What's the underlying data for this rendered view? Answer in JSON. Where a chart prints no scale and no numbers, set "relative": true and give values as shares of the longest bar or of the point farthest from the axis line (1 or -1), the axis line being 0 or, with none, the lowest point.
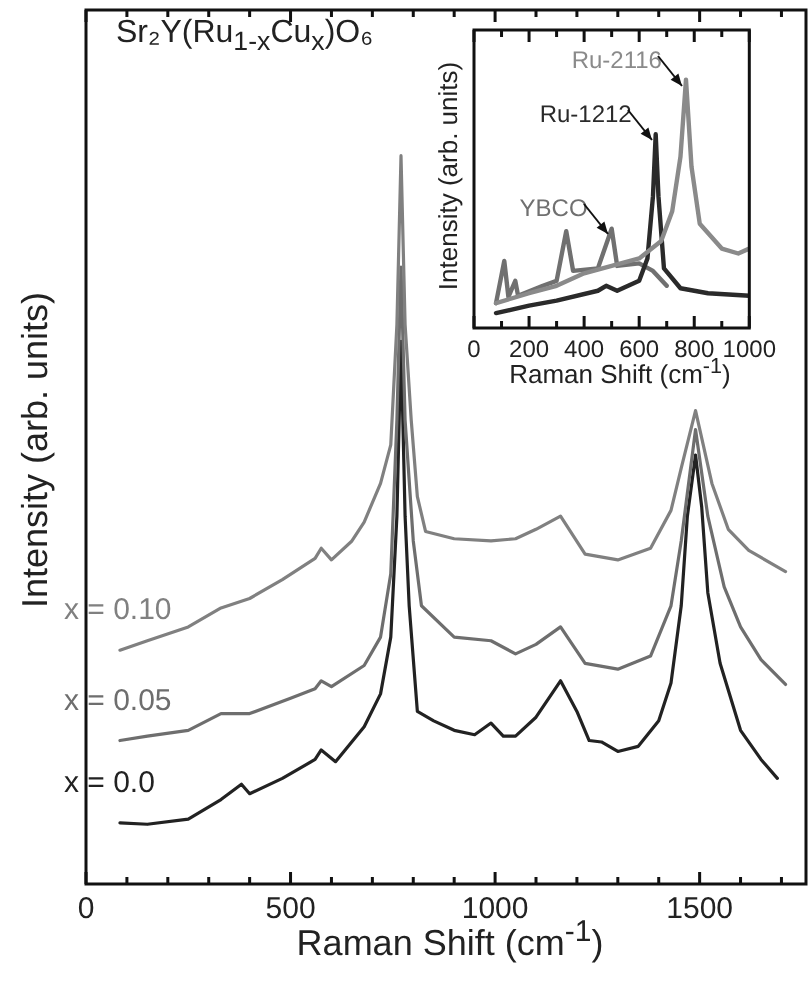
{
  "chart_data": [
    {
      "type": "line",
      "title": "Sr₂Y(Ru$_{1-x}$Cu$_{x}$)O₆",
      "xlabel": "Raman Shift (cm$^{-1}$)",
      "ylabel": "Intensity (arb. units)",
      "relative": true,
      "xlim": [
        0,
        1760
      ],
      "xticks": [
        0,
        {
          "value": 100,
          "label": null
        },
        {
          "value": 200,
          "label": null
        },
        {
          "value": 300,
          "label": null
        },
        {
          "value": 400,
          "label": null
        },
        500,
        {
          "value": 600,
          "label": null
        },
        {
          "value": 700,
          "label": null
        },
        {
          "value": 800,
          "label": null
        },
        {
          "value": 900,
          "label": null
        },
        1000,
        {
          "value": 1100,
          "label": null
        },
        {
          "value": 1200,
          "label": null
        },
        {
          "value": 1300,
          "label": null
        },
        {
          "value": 1400,
          "label": null
        },
        1500,
        {
          "value": 1600,
          "label": null
        },
        {
          "value": 1700,
          "label": null
        }
      ],
      "series": [
        {
          "name": "x = 0.10",
          "color": "#808080",
          "x": [
            83,
            150,
            250,
            330,
            400,
            480,
            560,
            575,
            600,
            650,
            680,
            720,
            745,
            760,
            770,
            780,
            795,
            810,
            830,
            900,
            990,
            1050,
            1100,
            1160,
            1220,
            1300,
            1380,
            1430,
            1455,
            1490,
            1530,
            1570,
            1620,
            1710
          ],
          "values": [
            0.321,
            0.334,
            0.353,
            0.379,
            0.392,
            0.418,
            0.447,
            0.461,
            0.445,
            0.471,
            0.497,
            0.55,
            0.603,
            0.768,
            1,
            0.768,
            0.637,
            0.532,
            0.484,
            0.474,
            0.471,
            0.474,
            0.487,
            0.505,
            0.453,
            0.445,
            0.461,
            0.513,
            0.571,
            0.65,
            0.55,
            0.487,
            0.458,
            0.429
          ]
        },
        {
          "name": "x = 0.05",
          "color": "#6e6e6e",
          "x": [
            83,
            150,
            250,
            330,
            400,
            500,
            560,
            575,
            600,
            680,
            720,
            745,
            760,
            770,
            780,
            800,
            820,
            900,
            990,
            1050,
            1100,
            1160,
            1220,
            1300,
            1380,
            1430,
            1455,
            1490,
            1520,
            1560,
            1600,
            1650,
            1710
          ],
          "values": [
            0.197,
            0.203,
            0.211,
            0.234,
            0.234,
            0.255,
            0.268,
            0.279,
            0.271,
            0.3,
            0.339,
            0.426,
            0.637,
            0.847,
            0.637,
            0.471,
            0.382,
            0.339,
            0.334,
            0.316,
            0.329,
            0.353,
            0.303,
            0.295,
            0.313,
            0.382,
            0.471,
            0.624,
            0.505,
            0.408,
            0.353,
            0.308,
            0.274
          ]
        },
        {
          "name": "x = 0.0",
          "color": "#222222",
          "x": [
            83,
            150,
            250,
            330,
            380,
            400,
            480,
            560,
            575,
            610,
            680,
            720,
            745,
            760,
            770,
            780,
            790,
            810,
            850,
            900,
            950,
            990,
            1020,
            1050,
            1100,
            1160,
            1200,
            1230,
            1260,
            1300,
            1350,
            1400,
            1430,
            1455,
            1470,
            1490,
            1505,
            1520,
            1550,
            1600,
            1650,
            1690
          ],
          "values": [
            0.084,
            0.082,
            0.089,
            0.116,
            0.137,
            0.124,
            0.145,
            0.171,
            0.184,
            0.168,
            0.216,
            0.261,
            0.339,
            0.505,
            0.745,
            0.505,
            0.382,
            0.237,
            0.224,
            0.211,
            0.205,
            0.221,
            0.203,
            0.203,
            0.229,
            0.279,
            0.237,
            0.197,
            0.195,
            0.182,
            0.189,
            0.224,
            0.276,
            0.382,
            0.505,
            0.589,
            0.518,
            0.4,
            0.303,
            0.211,
            0.171,
            0.145
          ]
        }
      ]
    },
    {
      "type": "line",
      "xlabel": "Raman Shift (cm$^{-1}$)",
      "ylabel": "Intensity (arb. units)",
      "relative": true,
      "xlim": [
        0,
        1000
      ],
      "xticks": [
        0,
        {
          "value": 100,
          "label": null
        },
        200,
        {
          "value": 300,
          "label": null
        },
        400,
        {
          "value": 500,
          "label": null
        },
        600,
        {
          "value": 700,
          "label": null
        },
        800,
        {
          "value": 900,
          "label": null
        },
        1000
      ],
      "series": [
        {
          "name": "Ru-2116",
          "color": "#8a8a8a",
          "x": [
            80,
            200,
            300,
            400,
            500,
            600,
            680,
            720,
            750,
            770,
            790,
            820,
            900,
            960,
            1000
          ],
          "values": [
            0.1,
            0.14,
            0.17,
            0.22,
            0.25,
            0.28,
            0.35,
            0.47,
            0.69,
            1,
            0.65,
            0.42,
            0.32,
            0.3,
            0.32
          ]
        },
        {
          "name": "Ru-1212",
          "color": "#2a2a2a",
          "x": [
            80,
            200,
            300,
            450,
            480,
            520,
            600,
            630,
            650,
            660,
            670,
            690,
            750,
            850,
            1000
          ],
          "values": [
            0.06,
            0.09,
            0.11,
            0.15,
            0.17,
            0.15,
            0.19,
            0.28,
            0.53,
            0.78,
            0.53,
            0.24,
            0.16,
            0.14,
            0.13
          ]
        },
        {
          "name": "YBCO",
          "color": "#707070",
          "x": [
            80,
            110,
            125,
            150,
            160,
            250,
            300,
            335,
            360,
            450,
            500,
            520,
            600,
            650,
            700
          ],
          "values": [
            0.1,
            0.27,
            0.125,
            0.19,
            0.13,
            0.17,
            0.19,
            0.39,
            0.23,
            0.24,
            0.4,
            0.25,
            0.26,
            0.23,
            0.17
          ]
        }
      ]
    }
  ]
}
